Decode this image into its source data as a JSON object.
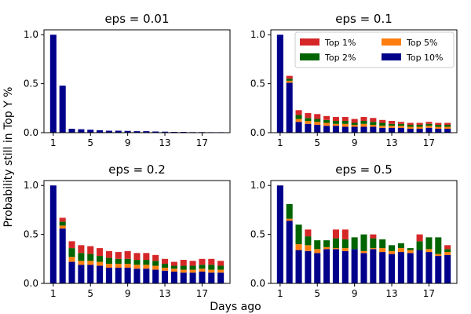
{
  "chart_data": {
    "type": "bar",
    "stacked": true,
    "ylabel": "Probability still in Top Y %",
    "xlabel": "Days ago",
    "colors": {
      "Top 1%": "#d62728",
      "Top 2%": "#006400",
      "Top 5%": "#ff7f0e",
      "Top 10%": "#00008b"
    },
    "legend": {
      "location": "upper right of eps = 0.1 panel",
      "entries": [
        "Top 1%",
        "Top 2%",
        "Top 5%",
        "Top 10%"
      ]
    },
    "x": [
      1,
      2,
      3,
      4,
      5,
      6,
      7,
      8,
      9,
      10,
      11,
      12,
      13,
      14,
      15,
      16,
      17,
      18,
      19
    ],
    "xticks": [
      1,
      5,
      9,
      13,
      17
    ],
    "yticks": [
      0.0,
      0.5,
      1.0
    ],
    "ylim": [
      0,
      1.05
    ],
    "panels": [
      {
        "title": "eps = 0.01",
        "series": [
          {
            "name": "Top 10%",
            "values": [
              1.0,
              0.48,
              0.04,
              0.035,
              0.03,
              0.025,
              0.02,
              0.02,
              0.018,
              0.015,
              0.015,
              0.012,
              0.01,
              0.008,
              0.008,
              0.006,
              0.006,
              0.005,
              0.005
            ]
          },
          {
            "name": "Top 5%",
            "values": [
              0,
              0,
              0,
              0,
              0,
              0,
              0,
              0,
              0,
              0,
              0,
              0,
              0,
              0,
              0,
              0,
              0,
              0,
              0
            ]
          },
          {
            "name": "Top 2%",
            "values": [
              0,
              0,
              0,
              0,
              0,
              0,
              0,
              0,
              0,
              0,
              0,
              0,
              0,
              0,
              0,
              0,
              0,
              0,
              0
            ]
          },
          {
            "name": "Top 1%",
            "values": [
              0,
              0,
              0,
              0,
              0,
              0,
              0,
              0,
              0,
              0,
              0,
              0,
              0,
              0,
              0,
              0,
              0,
              0,
              0
            ]
          }
        ]
      },
      {
        "title": "eps = 0.1",
        "series": [
          {
            "name": "Top 10%",
            "values": [
              1.0,
              0.51,
              0.11,
              0.09,
              0.08,
              0.07,
              0.07,
              0.06,
              0.06,
              0.06,
              0.06,
              0.05,
              0.05,
              0.05,
              0.04,
              0.04,
              0.05,
              0.04,
              0.04
            ]
          },
          {
            "name": "Top 5%",
            "values": [
              0,
              0.02,
              0.03,
              0.03,
              0.03,
              0.03,
              0.02,
              0.03,
              0.02,
              0.03,
              0.02,
              0.02,
              0.02,
              0.02,
              0.02,
              0.02,
              0.02,
              0.02,
              0.02
            ]
          },
          {
            "name": "Top 2%",
            "values": [
              0,
              0.02,
              0.04,
              0.03,
              0.03,
              0.03,
              0.03,
              0.03,
              0.02,
              0.03,
              0.03,
              0.03,
              0.02,
              0.02,
              0.02,
              0.02,
              0.02,
              0.02,
              0.02
            ]
          },
          {
            "name": "Top 1%",
            "values": [
              0,
              0.03,
              0.05,
              0.05,
              0.05,
              0.04,
              0.04,
              0.04,
              0.04,
              0.04,
              0.04,
              0.03,
              0.03,
              0.02,
              0.02,
              0.02,
              0.02,
              0.02,
              0.02
            ]
          }
        ]
      },
      {
        "title": "eps = 0.2",
        "series": [
          {
            "name": "Top 10%",
            "values": [
              1.0,
              0.56,
              0.22,
              0.19,
              0.19,
              0.18,
              0.16,
              0.16,
              0.16,
              0.15,
              0.15,
              0.14,
              0.13,
              0.12,
              0.11,
              0.11,
              0.12,
              0.11,
              0.11
            ]
          },
          {
            "name": "Top 5%",
            "values": [
              0,
              0.03,
              0.05,
              0.04,
              0.04,
              0.04,
              0.04,
              0.04,
              0.04,
              0.04,
              0.04,
              0.04,
              0.03,
              0.03,
              0.03,
              0.03,
              0.03,
              0.03,
              0.03
            ]
          },
          {
            "name": "Top 2%",
            "values": [
              0,
              0.04,
              0.09,
              0.08,
              0.07,
              0.06,
              0.06,
              0.05,
              0.05,
              0.05,
              0.05,
              0.05,
              0.04,
              0.03,
              0.04,
              0.04,
              0.04,
              0.05,
              0.04
            ]
          },
          {
            "name": "Top 1%",
            "values": [
              0,
              0.04,
              0.07,
              0.08,
              0.08,
              0.08,
              0.07,
              0.07,
              0.08,
              0.07,
              0.07,
              0.06,
              0.05,
              0.04,
              0.06,
              0.05,
              0.06,
              0.06,
              0.05
            ]
          }
        ]
      },
      {
        "title": "eps = 0.5",
        "series": [
          {
            "name": "Top 10%",
            "values": [
              1.0,
              0.64,
              0.34,
              0.33,
              0.31,
              0.35,
              0.35,
              0.33,
              0.35,
              0.31,
              0.35,
              0.32,
              0.3,
              0.32,
              0.31,
              0.34,
              0.32,
              0.28,
              0.29
            ]
          },
          {
            "name": "Top 5%",
            "values": [
              0,
              0.02,
              0.06,
              0.06,
              0.04,
              0.02,
              0.01,
              0.03,
              0.0,
              0.02,
              0.01,
              0.04,
              0.03,
              0.04,
              0.03,
              0.0,
              0.03,
              0.02,
              0.03
            ]
          },
          {
            "name": "Top 2%",
            "values": [
              0,
              0.15,
              0.2,
              0.09,
              0.09,
              0.07,
              0.1,
              0.09,
              0.12,
              0.17,
              0.1,
              0.09,
              0.06,
              0.05,
              0.02,
              0.09,
              0.12,
              0.17,
              0.03
            ]
          },
          {
            "name": "Top 1%",
            "values": [
              0,
              0,
              0,
              0.07,
              0,
              0,
              0.09,
              0.1,
              0,
              0,
              0.04,
              0,
              0,
              0,
              0,
              0.07,
              0,
              0,
              0.04
            ]
          }
        ]
      }
    ]
  }
}
